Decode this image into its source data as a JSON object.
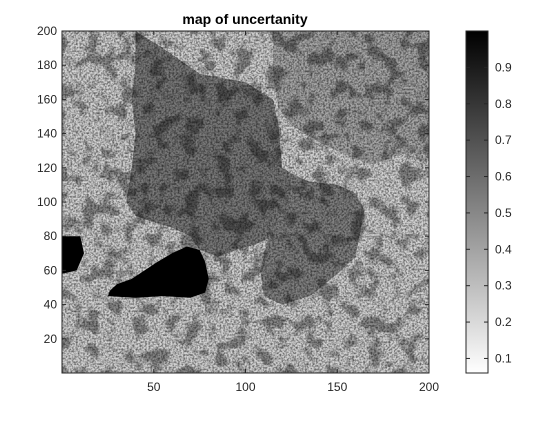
{
  "chart_data": {
    "type": "heatmap",
    "title": "map of uncertanity",
    "xlabel": "",
    "ylabel": "",
    "xlim": [
      0,
      200
    ],
    "ylim": [
      0,
      200
    ],
    "x_ticks": [
      50,
      100,
      150,
      200
    ],
    "y_ticks": [
      20,
      40,
      60,
      80,
      100,
      120,
      140,
      160,
      180,
      200
    ],
    "colormap": "gray-reversed",
    "colorbar": {
      "range": [
        0.06,
        1.0
      ],
      "ticks": [
        0.1,
        0.2,
        0.3,
        0.4,
        0.5,
        0.6,
        0.7,
        0.8,
        0.9
      ],
      "tick_labels": [
        "0.1",
        "0.2",
        "0.3",
        "0.4",
        "0.5",
        "0.6",
        "0.7",
        "0.8",
        "0.9"
      ],
      "low_color": "#ffffff",
      "high_color": "#000000"
    },
    "regions": [
      {
        "name": "central-block",
        "polygon": [
          [
            40,
            200
          ],
          [
            55,
            190
          ],
          [
            75,
            175
          ],
          [
            100,
            170
          ],
          [
            115,
            160
          ],
          [
            118,
            145
          ],
          [
            120,
            120
          ],
          [
            125,
            115
          ],
          [
            125,
            100
          ],
          [
            118,
            90
          ],
          [
            115,
            80
          ],
          [
            105,
            75
          ],
          [
            95,
            72
          ],
          [
            85,
            68
          ],
          [
            75,
            72
          ],
          [
            70,
            80
          ],
          [
            60,
            85
          ],
          [
            50,
            88
          ],
          [
            40,
            92
          ],
          [
            35,
            100
          ],
          [
            38,
            120
          ],
          [
            40,
            140
          ],
          [
            38,
            160
          ],
          [
            40,
            180
          ]
        ],
        "value": 0.55
      },
      {
        "name": "east-block",
        "polygon": [
          [
            120,
            120
          ],
          [
            128,
            115
          ],
          [
            135,
            112
          ],
          [
            150,
            110
          ],
          [
            160,
            105
          ],
          [
            165,
            95
          ],
          [
            162,
            80
          ],
          [
            160,
            68
          ],
          [
            150,
            58
          ],
          [
            135,
            45
          ],
          [
            120,
            40
          ],
          [
            110,
            45
          ],
          [
            108,
            60
          ],
          [
            112,
            78
          ],
          [
            118,
            90
          ],
          [
            125,
            100
          ],
          [
            125,
            115
          ]
        ],
        "value": 0.52
      },
      {
        "name": "northeast-block",
        "polygon": [
          [
            115,
            200
          ],
          [
            200,
            200
          ],
          [
            200,
            130
          ],
          [
            185,
            128
          ],
          [
            170,
            122
          ],
          [
            160,
            125
          ],
          [
            140,
            135
          ],
          [
            125,
            145
          ],
          [
            118,
            155
          ],
          [
            115,
            175
          ]
        ],
        "value": 0.38
      },
      {
        "name": "dark-blob-left",
        "polygon": [
          [
            25,
            45
          ],
          [
            40,
            44
          ],
          [
            55,
            45
          ],
          [
            70,
            44
          ],
          [
            78,
            47
          ],
          [
            80,
            55
          ],
          [
            78,
            65
          ],
          [
            75,
            72
          ],
          [
            68,
            74
          ],
          [
            60,
            70
          ],
          [
            52,
            65
          ],
          [
            45,
            60
          ],
          [
            38,
            55
          ],
          [
            30,
            52
          ],
          [
            26,
            48
          ]
        ],
        "value": 1.0
      },
      {
        "name": "dark-blob-edge",
        "polygon": [
          [
            0,
            80
          ],
          [
            10,
            80
          ],
          [
            12,
            70
          ],
          [
            8,
            60
          ],
          [
            0,
            58
          ]
        ],
        "value": 1.0
      }
    ]
  }
}
